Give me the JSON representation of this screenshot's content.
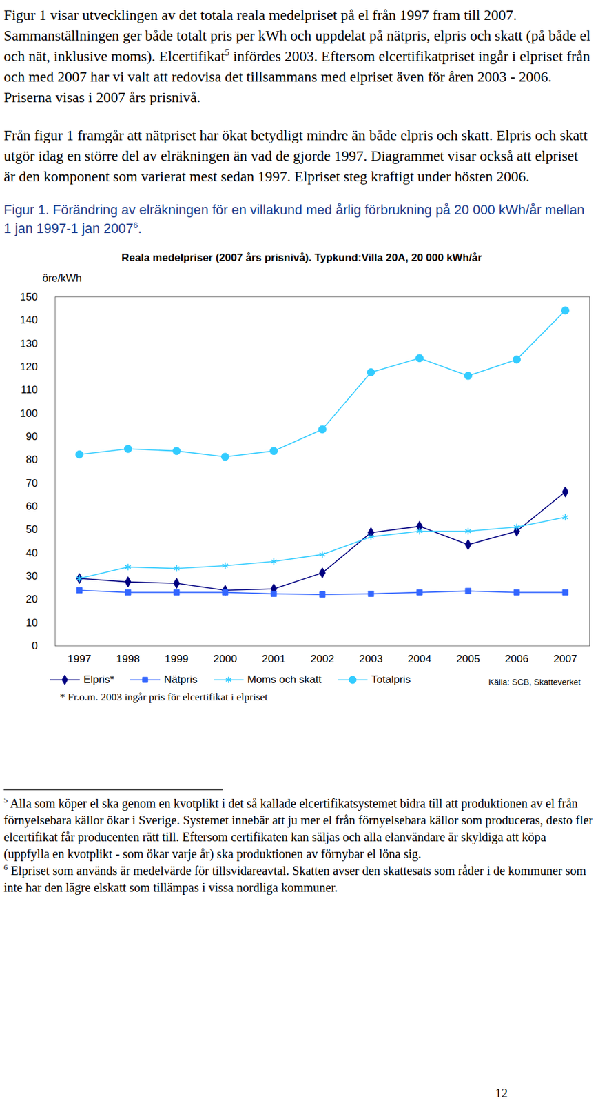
{
  "document": {
    "paragraphs": [
      [
        {
          "text": "Figur 1 visar utvecklingen av det totala reala medelpriset på el från 1997 fram till 2007. Sammanställningen ger både totalt pris per kWh och uppdelat på nätpris, elpris och skatt (på både el och nät, inklusive moms). Elcertifikat"
        },
        {
          "sup": "5"
        },
        {
          "text": " infördes 2003. Eftersom elcertifikatpriset ingår i elpriset från och med 2007 har vi valt att redovisa det tillsammans med elpriset även för åren 2003 - 2006. Priserna visas i 2007 års prisnivå."
        }
      ],
      [
        {
          "text": "Från figur 1 framgår att nätpriset har ökat betydligt mindre än både elpris och skatt. Elpris och skatt utgör idag en större del av elräkningen än vad de gjorde 1997. Diagrammet visar också att elpriset är den komponent som varierat mest sedan 1997. Elpriset steg kraftigt under hösten 2006."
        }
      ]
    ],
    "caption": [
      {
        "text": "Figur 1. Förändring av elräkningen för en villakund med årlig förbrukning på 20 000 kWh/år mellan 1 jan 1997-1 jan 2007"
      },
      {
        "sup": "6"
      },
      {
        "text": "."
      }
    ],
    "footnotes": [
      {
        "marker": "5",
        "text": "Alla som köper el ska genom en kvotplikt i det så kallade elcertifikatsystemet bidra till att produktionen av el från förnyelsebara källor ökar i Sverige. Systemet innebär att ju mer el från förnyelsebara källor som produceras, desto fler elcertifikat får producenten rätt till. Eftersom certifikaten kan säljas och alla elanvändare är skyldiga att köpa (uppfylla en kvotplikt - som ökar varje år) ska produktionen av förnybar el löna sig."
      },
      {
        "marker": "6",
        "text": "Elpriset som används är medelvärde för tillsvidareavtal. Skatten avser den skattesats som råder i de kommuner som inte har den lägre elskatt som tillämpas i vissa nordliga kommuner."
      }
    ],
    "page_number": "12"
  },
  "chart_data": {
    "type": "line",
    "title": "Reala medelpriser (2007 års prisnivå). Typkund:Villa 20A, 20 000 kWh/år",
    "y_label": "öre/kWh",
    "x": [
      "1997",
      "1998",
      "1999",
      "2000",
      "2001",
      "2002",
      "2003",
      "2004",
      "2005",
      "2006",
      "2007"
    ],
    "series": [
      {
        "name": "Elpris*",
        "color": "#000080",
        "marker": "diamond",
        "values": [
          29.0,
          27.5,
          26.9,
          23.9,
          24.5,
          31.4,
          48.7,
          51.4,
          43.5,
          49.3,
          66.2
        ]
      },
      {
        "name": "Nätpris",
        "color": "#3366ff",
        "marker": "square",
        "values": [
          23.9,
          23.0,
          23.0,
          23.0,
          22.4,
          22.1,
          22.4,
          23.0,
          23.6,
          23.0,
          23.0
        ]
      },
      {
        "name": "Moms och skatt",
        "color": "#33ccff",
        "marker": "asterisk",
        "values": [
          29.0,
          33.9,
          33.3,
          34.5,
          36.3,
          39.3,
          46.9,
          49.3,
          49.3,
          51.1,
          55.3
        ]
      },
      {
        "name": "Totalpris",
        "color": "#33ccff",
        "marker": "circle",
        "values": [
          82.3,
          84.7,
          83.8,
          81.3,
          83.8,
          93.1,
          117.6,
          123.7,
          116.1,
          123.1,
          144.2
        ]
      }
    ],
    "ylim": [
      0,
      150
    ],
    "yticks": [
      0,
      10,
      20,
      30,
      40,
      50,
      60,
      70,
      80,
      90,
      100,
      110,
      120,
      130,
      140,
      150
    ],
    "grid": false,
    "legend": "bottom",
    "note": "* Fr.o.m. 2003 ingår pris för elcertifikat i elpriset",
    "source": "Källa: SCB, Skatteverket"
  }
}
